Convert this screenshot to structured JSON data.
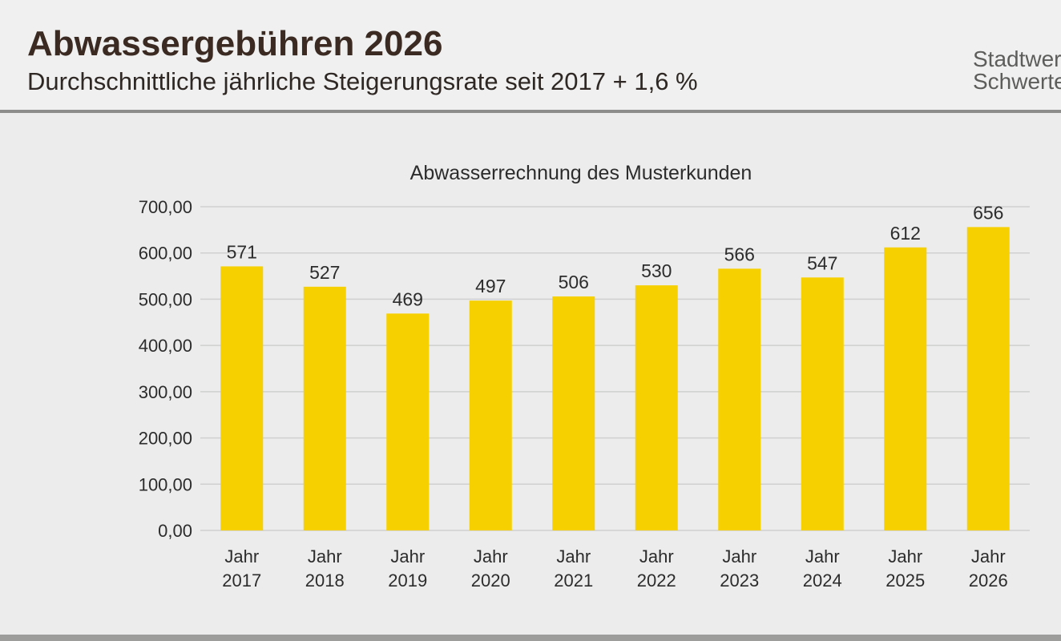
{
  "slide": {
    "title": "Abwassergebühren 2026",
    "subtitle": "Durchschnittliche jährliche Steigerungsrate seit 2017  + 1,6 %",
    "brand_line1": "Stadtwerke",
    "brand_line2": "Schwerte"
  },
  "colors": {
    "bar": "#f7d000",
    "grid": "#cfd0cf",
    "text": "#2c2c2c"
  },
  "chart_data": {
    "type": "bar",
    "title": "Abwasserrechnung des Musterkunden",
    "categories": [
      [
        "Jahr",
        "2017"
      ],
      [
        "Jahr",
        "2018"
      ],
      [
        "Jahr",
        "2019"
      ],
      [
        "Jahr",
        "2020"
      ],
      [
        "Jahr",
        "2021"
      ],
      [
        "Jahr",
        "2022"
      ],
      [
        "Jahr",
        "2023"
      ],
      [
        "Jahr",
        "2024"
      ],
      [
        "Jahr",
        "2025"
      ],
      [
        "Jahr",
        "2026"
      ]
    ],
    "values": [
      571,
      527,
      469,
      497,
      506,
      530,
      566,
      547,
      612,
      656
    ],
    "data_labels": [
      "571",
      "527",
      "469",
      "497",
      "506",
      "530",
      "566",
      "547",
      "612",
      "656"
    ],
    "yticks": [
      0,
      100,
      200,
      300,
      400,
      500,
      600,
      700
    ],
    "ytick_labels": [
      "0,00",
      "100,00",
      "200,00",
      "300,00",
      "400,00",
      "500,00",
      "600,00",
      "700,00"
    ],
    "ylim": [
      0,
      700
    ],
    "xlabel": "",
    "ylabel": "",
    "grid": true
  }
}
